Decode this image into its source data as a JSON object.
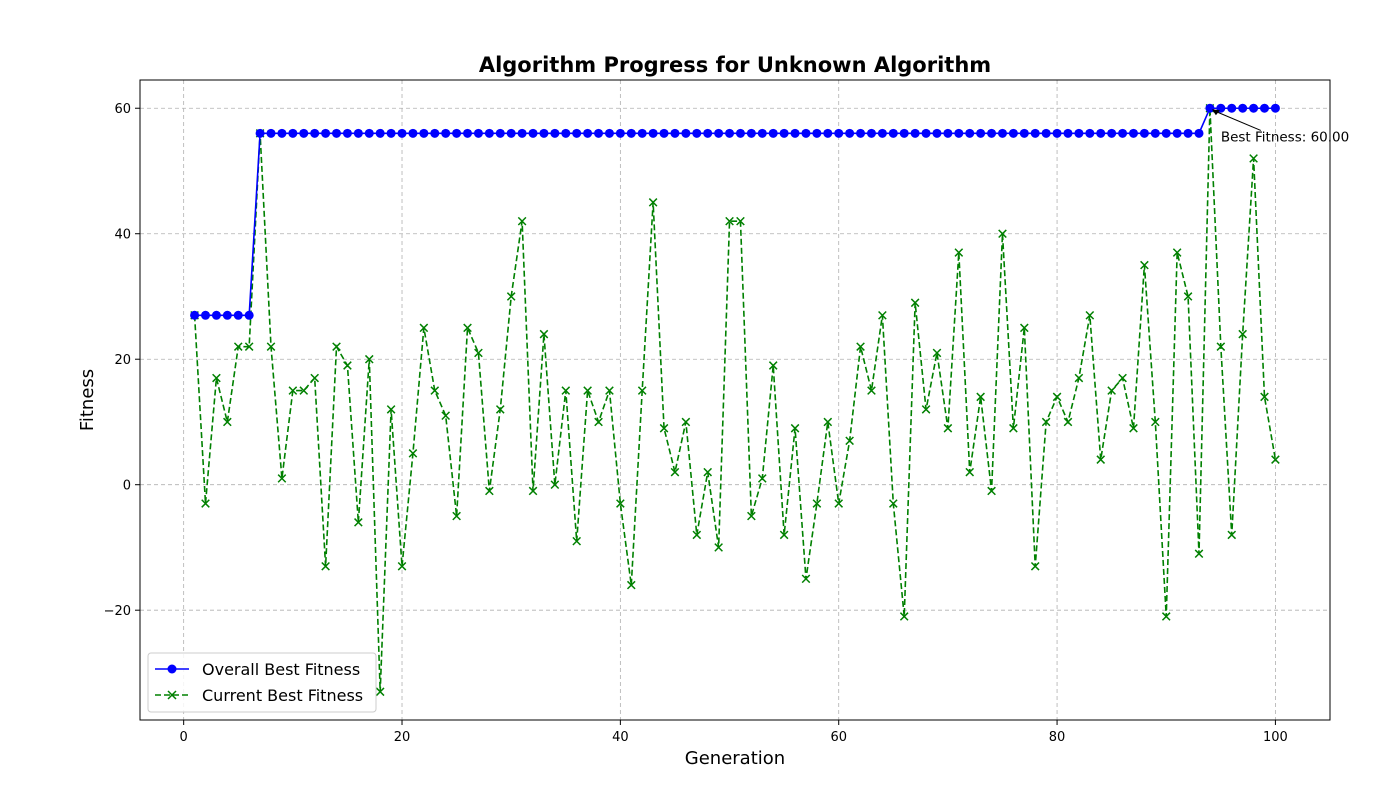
{
  "chart_data": {
    "type": "line",
    "title": "Algorithm Progress for Unknown Algorithm",
    "xlabel": "Generation",
    "ylabel": "Fitness",
    "xlim": [
      -4,
      105
    ],
    "ylim": [
      -37.5,
      64.5
    ],
    "xticks": [
      0,
      20,
      40,
      60,
      80,
      100
    ],
    "yticks": [
      -20,
      0,
      20,
      40,
      60
    ],
    "grid": true,
    "legend_position": "lower-left",
    "x": [
      1,
      2,
      3,
      4,
      5,
      6,
      7,
      8,
      9,
      10,
      11,
      12,
      13,
      14,
      15,
      16,
      17,
      18,
      19,
      20,
      21,
      22,
      23,
      24,
      25,
      26,
      27,
      28,
      29,
      30,
      31,
      32,
      33,
      34,
      35,
      36,
      37,
      38,
      39,
      40,
      41,
      42,
      43,
      44,
      45,
      46,
      47,
      48,
      49,
      50,
      51,
      52,
      53,
      54,
      55,
      56,
      57,
      58,
      59,
      60,
      61,
      62,
      63,
      64,
      65,
      66,
      67,
      68,
      69,
      70,
      71,
      72,
      73,
      74,
      75,
      76,
      77,
      78,
      79,
      80,
      81,
      82,
      83,
      84,
      85,
      86,
      87,
      88,
      89,
      90,
      91,
      92,
      93,
      94,
      95,
      96,
      97,
      98,
      99,
      100
    ],
    "series": [
      {
        "name": "Overall Best Fitness",
        "color": "#0000ff",
        "line_style": "solid",
        "marker": "circle",
        "values": [
          27,
          27,
          27,
          27,
          27,
          27,
          56,
          56,
          56,
          56,
          56,
          56,
          56,
          56,
          56,
          56,
          56,
          56,
          56,
          56,
          56,
          56,
          56,
          56,
          56,
          56,
          56,
          56,
          56,
          56,
          56,
          56,
          56,
          56,
          56,
          56,
          56,
          56,
          56,
          56,
          56,
          56,
          56,
          56,
          56,
          56,
          56,
          56,
          56,
          56,
          56,
          56,
          56,
          56,
          56,
          56,
          56,
          56,
          56,
          56,
          56,
          56,
          56,
          56,
          56,
          56,
          56,
          56,
          56,
          56,
          56,
          56,
          56,
          56,
          56,
          56,
          56,
          56,
          56,
          56,
          56,
          56,
          56,
          56,
          56,
          56,
          56,
          56,
          56,
          56,
          56,
          56,
          56,
          60,
          60,
          60,
          60,
          60,
          60,
          60
        ]
      },
      {
        "name": "Current Best Fitness",
        "color": "#008000",
        "line_style": "dashed",
        "marker": "x",
        "values": [
          27,
          -3,
          17,
          10,
          22,
          22,
          56,
          22,
          1,
          15,
          15,
          17,
          -13,
          22,
          19,
          -6,
          20,
          -33,
          12,
          -13,
          5,
          25,
          15,
          11,
          -5,
          25,
          21,
          -1,
          12,
          30,
          42,
          -1,
          24,
          0,
          15,
          -9,
          15,
          10,
          15,
          -3,
          -16,
          15,
          45,
          9,
          2,
          10,
          -8,
          2,
          -10,
          42,
          42,
          -5,
          1,
          19,
          -8,
          9,
          -15,
          -3,
          10,
          -3,
          7,
          22,
          15,
          27,
          -3,
          -21,
          29,
          12,
          21,
          9,
          37,
          2,
          14,
          -1,
          40,
          9,
          25,
          -13,
          10,
          14,
          10,
          17,
          27,
          4,
          15,
          17,
          9,
          35,
          10,
          -21,
          37,
          30,
          -11,
          60,
          22,
          -8,
          24,
          52,
          14,
          4
        ]
      }
    ],
    "annotation": {
      "text": "Best Fitness: 60.00",
      "x": 94,
      "y": 60,
      "text_x": 95,
      "text_y": 55.5
    }
  }
}
